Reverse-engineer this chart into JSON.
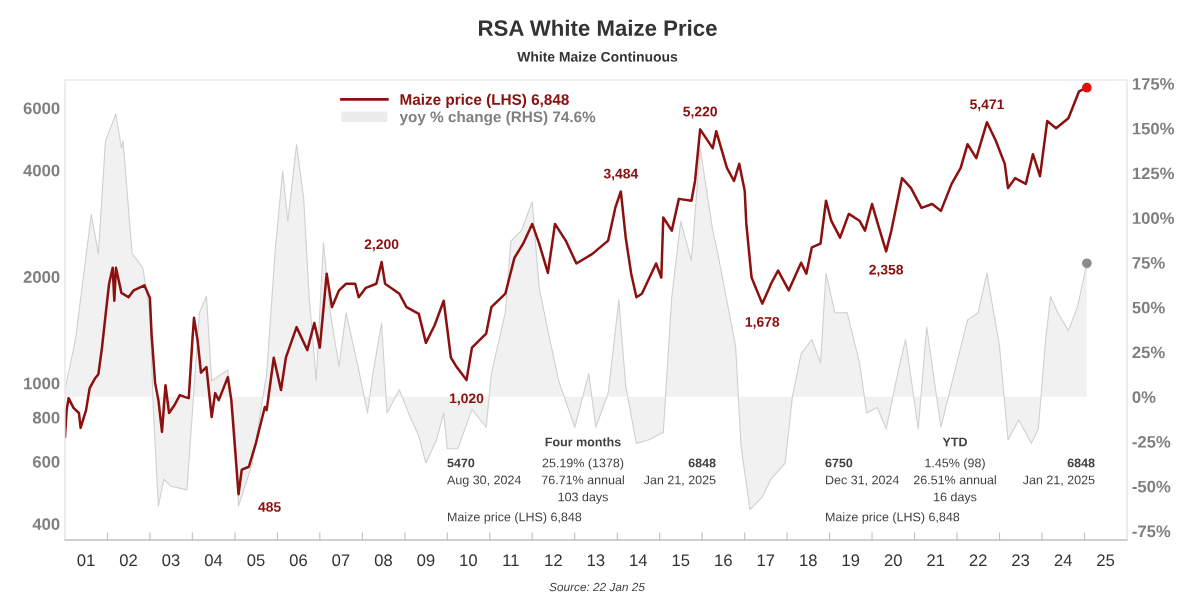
{
  "chart_data": {
    "type": "line",
    "title": "RSA White Maize Price",
    "subtitle": "White Maize Continuous",
    "xlim": [
      "2001-01-01",
      "2026-01-01"
    ],
    "ylim": [
      360,
      7200
    ],
    "log": "y",
    "y2lim": [
      -80,
      177
    ],
    "xticks": [
      {
        "value": "2001-07-01",
        "label": "01"
      },
      {
        "value": "2002-07-01",
        "label": "02"
      },
      {
        "value": "2003-07-01",
        "label": "03"
      },
      {
        "value": "2004-07-01",
        "label": "04"
      },
      {
        "value": "2005-07-01",
        "label": "05"
      },
      {
        "value": "2006-07-01",
        "label": "06"
      },
      {
        "value": "2007-07-01",
        "label": "07"
      },
      {
        "value": "2008-07-01",
        "label": "08"
      },
      {
        "value": "2009-07-01",
        "label": "09"
      },
      {
        "value": "2010-07-01",
        "label": "10"
      },
      {
        "value": "2011-07-01",
        "label": "11"
      },
      {
        "value": "2012-07-01",
        "label": "12"
      },
      {
        "value": "2013-07-01",
        "label": "13"
      },
      {
        "value": "2014-07-01",
        "label": "14"
      },
      {
        "value": "2015-07-01",
        "label": "15"
      },
      {
        "value": "2016-07-01",
        "label": "16"
      },
      {
        "value": "2017-07-01",
        "label": "17"
      },
      {
        "value": "2018-07-01",
        "label": "18"
      },
      {
        "value": "2019-07-01",
        "label": "19"
      },
      {
        "value": "2020-07-01",
        "label": "20"
      },
      {
        "value": "2021-07-01",
        "label": "21"
      },
      {
        "value": "2022-07-01",
        "label": "22"
      },
      {
        "value": "2023-07-01",
        "label": "23"
      },
      {
        "value": "2024-07-01",
        "label": "24"
      },
      {
        "value": "2025-07-01",
        "label": "25"
      },
      {
        "value": "2002-01-01",
        "label": null
      },
      {
        "value": "2003-01-01",
        "label": null
      },
      {
        "value": "2004-01-01",
        "label": null
      },
      {
        "value": "2005-01-01",
        "label": null
      },
      {
        "value": "2006-01-01",
        "label": null
      },
      {
        "value": "2007-01-01",
        "label": null
      },
      {
        "value": "2008-01-01",
        "label": null
      },
      {
        "value": "2009-01-01",
        "label": null
      },
      {
        "value": "2010-01-01",
        "label": null
      },
      {
        "value": "2011-01-01",
        "label": null
      },
      {
        "value": "2012-01-01",
        "label": null
      },
      {
        "value": "2013-01-01",
        "label": null
      },
      {
        "value": "2014-01-01",
        "label": null
      },
      {
        "value": "2015-01-01",
        "label": null
      },
      {
        "value": "2016-01-01",
        "label": null
      },
      {
        "value": "2017-01-01",
        "label": null
      },
      {
        "value": "2018-01-01",
        "label": null
      },
      {
        "value": "2019-01-01",
        "label": null
      },
      {
        "value": "2020-01-01",
        "label": null
      },
      {
        "value": "2021-01-01",
        "label": null
      },
      {
        "value": "2022-01-01",
        "label": null
      },
      {
        "value": "2023-01-01",
        "label": null
      },
      {
        "value": "2024-01-01",
        "label": null
      },
      {
        "value": "2025-01-01",
        "label": null
      }
    ],
    "yticks": [
      400,
      600,
      800,
      1000,
      2000,
      4000,
      6000
    ],
    "y2ticks": [
      {
        "value": 175,
        "label": "175%"
      },
      {
        "value": 150,
        "label": "150%"
      },
      {
        "value": 125,
        "label": "125%"
      },
      {
        "value": 100,
        "label": "100%"
      },
      {
        "value": 75,
        "label": "75%"
      },
      {
        "value": 50,
        "label": "50%"
      },
      {
        "value": 25,
        "label": "25%"
      },
      {
        "value": 0,
        "label": "0%"
      },
      {
        "value": -25,
        "label": "-25%"
      },
      {
        "value": -50,
        "label": "-50%"
      },
      {
        "value": -75,
        "label": "-75%"
      }
    ],
    "grid": false,
    "legend": "top",
    "series": [
      {
        "name": "yoy % change (RHS) 74.6%",
        "type": "area",
        "axis": "y2",
        "color": "#d0d0d0",
        "x": [
          "2001-01-01",
          "2001-04-01",
          "2001-08-15",
          "2001-10-15",
          "2001-12-15",
          "2002-03-15",
          "2002-05-01",
          "2002-05-15",
          "2002-08-01",
          "2002-11-01",
          "2003-01-01",
          "2003-02-01",
          "2003-03-15",
          "2003-05-01",
          "2003-07-01",
          "2003-11-15",
          "2004-01-01",
          "2004-03-01",
          "2004-05-01",
          "2004-06-15",
          "2004-11-01",
          "2005-01-01",
          "2005-02-01",
          "2005-06-01",
          "2005-10-01",
          "2005-12-15",
          "2006-02-15",
          "2006-04-01",
          "2006-06-15",
          "2006-08-15",
          "2006-10-01",
          "2006-12-01",
          "2007-02-01",
          "2007-04-01",
          "2007-06-15",
          "2007-08-15",
          "2007-12-01",
          "2008-02-15",
          "2008-04-01",
          "2008-06-15",
          "2008-08-01",
          "2008-11-15",
          "2009-02-01",
          "2009-05-01",
          "2009-07-01",
          "2009-10-01",
          "2009-12-01",
          "2010-01-01",
          "2010-04-01",
          "2010-08-01",
          "2010-12-01",
          "2011-01-15",
          "2011-05-15",
          "2011-07-01",
          "2011-10-01",
          "2012-01-01",
          "2012-03-01",
          "2012-05-15",
          "2012-08-15",
          "2013-01-01",
          "2013-05-01",
          "2013-07-01",
          "2013-10-15",
          "2014-01-15",
          "2014-03-15",
          "2014-06-15",
          "2014-10-01",
          "2015-02-01",
          "2015-04-15",
          "2015-07-01",
          "2015-10-01",
          "2015-12-15",
          "2016-04-01",
          "2016-05-15",
          "2016-10-15",
          "2016-12-01",
          "2017-02-15",
          "2017-06-01",
          "2017-08-15",
          "2017-12-15",
          "2018-02-15",
          "2018-05-01",
          "2018-08-01",
          "2018-10-15",
          "2018-12-01",
          "2019-02-15",
          "2019-06-01",
          "2019-09-15",
          "2019-11-15",
          "2020-02-15",
          "2020-05-01",
          "2020-08-15",
          "2020-10-15",
          "2021-02-01",
          "2021-04-15",
          "2021-08-15",
          "2021-12-15",
          "2022-04-01",
          "2022-07-01",
          "2022-09-15",
          "2023-01-01",
          "2023-03-15",
          "2023-06-15",
          "2023-10-01",
          "2023-12-01",
          "2024-02-01",
          "2024-03-15",
          "2024-05-15",
          "2024-08-15",
          "2024-11-01",
          "2025-01-21"
        ],
        "values": [
          4,
          32,
          102,
          80,
          143,
          158,
          139,
          143,
          80,
          72,
          47,
          -9,
          -61,
          -46,
          -50,
          -52,
          -9,
          47,
          56,
          9,
          15,
          -18,
          -61,
          -37,
          13,
          83,
          126,
          98,
          141,
          111,
          56,
          9,
          86,
          47,
          17,
          47,
          15,
          -9,
          13,
          41,
          -9,
          4,
          -9,
          -22,
          -37,
          -24,
          -9,
          -29,
          -29,
          -7,
          -17,
          13,
          47,
          87,
          93,
          109,
          61,
          37,
          9,
          -17,
          13,
          -17,
          2,
          54,
          6,
          -26,
          -24,
          -20,
          56,
          98,
          76,
          139,
          93,
          80,
          28,
          -28,
          -63,
          -56,
          -46,
          -37,
          0,
          24,
          32,
          19,
          69,
          47,
          47,
          19,
          -9,
          -6,
          -18,
          15,
          32,
          -18,
          39,
          -17,
          15,
          43,
          47,
          69,
          28,
          -24,
          -13,
          -26,
          -18,
          32,
          56,
          47,
          37,
          50,
          74.6
        ]
      },
      {
        "name": "Maize price (LHS) 6,848",
        "color": "#8c1010",
        "x": [
          "2001-01-01",
          "2001-01-15",
          "2001-02-01",
          "2001-03-15",
          "2001-05-01",
          "2001-05-15",
          "2001-07-01",
          "2001-08-01",
          "2001-09-15",
          "2001-10-15",
          "2001-11-15",
          "2001-12-15",
          "2002-01-15",
          "2002-02-15",
          "2002-03-01",
          "2002-03-15",
          "2002-05-01",
          "2002-07-01",
          "2002-08-15",
          "2002-11-15",
          "2003-01-01",
          "2003-01-15",
          "2003-02-15",
          "2003-03-15",
          "2003-04-15",
          "2003-05-15",
          "2003-06-15",
          "2003-08-01",
          "2003-09-15",
          "2003-11-01",
          "2003-12-01",
          "2004-01-01",
          "2004-01-15",
          "2004-02-15",
          "2004-03-15",
          "2004-05-01",
          "2004-06-15",
          "2004-07-15",
          "2004-08-15",
          "2004-11-01",
          "2004-12-01",
          "2005-01-01",
          "2005-02-01",
          "2005-03-01",
          "2005-05-01",
          "2005-07-01",
          "2005-09-15",
          "2005-10-01",
          "2005-12-01",
          "2006-02-01",
          "2006-03-15",
          "2006-06-15",
          "2006-09-15",
          "2006-11-15",
          "2007-01-01",
          "2007-03-01",
          "2007-04-15",
          "2007-06-15",
          "2007-08-15",
          "2007-11-01",
          "2007-12-01",
          "2008-02-01",
          "2008-05-01",
          "2008-06-15",
          "2008-07-15",
          "2008-11-15",
          "2009-01-15",
          "2009-05-01",
          "2009-07-01",
          "2009-09-15",
          "2009-12-01",
          "2010-02-01",
          "2010-03-15",
          "2010-06-15",
          "2010-08-01",
          "2010-12-01",
          "2011-01-15",
          "2011-05-15",
          "2011-08-01",
          "2011-10-15",
          "2012-01-01",
          "2012-03-01",
          "2012-05-15",
          "2012-07-15",
          "2012-10-15",
          "2013-01-15",
          "2013-06-01",
          "2013-10-15",
          "2013-12-15",
          "2014-02-01",
          "2014-03-15",
          "2014-05-01",
          "2014-06-15",
          "2014-08-01",
          "2014-12-01",
          "2015-01-15",
          "2015-02-01",
          "2015-04-15",
          "2015-06-15",
          "2015-10-01",
          "2015-11-01",
          "2015-12-15",
          "2016-04-01",
          "2016-05-01",
          "2016-08-01",
          "2016-10-01",
          "2016-11-15",
          "2017-01-01",
          "2017-01-15",
          "2017-03-01",
          "2017-06-01",
          "2017-08-01",
          "2017-08-15",
          "2017-10-15",
          "2018-01-15",
          "2018-05-01",
          "2018-06-15",
          "2018-08-01",
          "2018-10-15",
          "2018-12-01",
          "2019-01-15",
          "2019-04-01",
          "2019-06-15",
          "2019-09-15",
          "2019-11-01",
          "2020-01-01",
          "2020-03-01",
          "2020-05-01",
          "2020-06-15",
          "2020-09-15",
          "2020-12-01",
          "2021-03-01",
          "2021-06-01",
          "2021-08-15",
          "2021-11-15",
          "2022-02-01",
          "2022-04-01",
          "2022-06-15",
          "2022-09-15",
          "2022-12-01",
          "2023-02-15",
          "2023-03-15",
          "2023-05-15",
          "2023-08-15",
          "2023-10-15",
          "2023-12-15",
          "2024-02-15",
          "2024-05-01",
          "2024-08-15",
          "2024-11-15",
          "2025-01-21"
        ],
        "values": [
          705,
          839,
          907,
          851,
          823,
          747,
          839,
          968,
          1030,
          1060,
          1260,
          1550,
          1910,
          2120,
          1710,
          2120,
          1800,
          1750,
          1830,
          1890,
          1740,
          1380,
          1000,
          895,
          728,
          987,
          823,
          867,
          925,
          913,
          907,
          1320,
          1530,
          1320,
          1070,
          1110,
          802,
          937,
          895,
          1040,
          895,
          660,
          485,
          569,
          580,
          678,
          856,
          839,
          1180,
          956,
          1180,
          1440,
          1240,
          1480,
          1260,
          2040,
          1640,
          1830,
          1910,
          1910,
          1750,
          1860,
          1910,
          2200,
          1910,
          1790,
          1640,
          1570,
          1300,
          1460,
          1710,
          1180,
          1120,
          1020,
          1260,
          1380,
          1640,
          1790,
          2260,
          2480,
          2820,
          2480,
          2050,
          2820,
          2530,
          2180,
          2320,
          2530,
          3130,
          3484,
          2580,
          2040,
          1750,
          1790,
          2180,
          1990,
          2940,
          2700,
          3320,
          3280,
          3730,
          5220,
          4620,
          5160,
          4060,
          3730,
          4170,
          3500,
          2820,
          1990,
          1678,
          1860,
          1910,
          2080,
          1830,
          2190,
          2040,
          2420,
          2480,
          3280,
          2880,
          2580,
          3010,
          2880,
          2700,
          3210,
          2750,
          2358,
          2700,
          3800,
          3560,
          3130,
          3210,
          3070,
          3660,
          4060,
          4740,
          4330,
          5471,
          4840,
          4170,
          3560,
          3800,
          3660,
          4440,
          3850,
          5510,
          5260,
          5610,
          6690,
          6848
        ]
      },
      {
        "type": "scatter",
        "axis": "y2",
        "color": "#8c8c8c",
        "marker": "circle",
        "x": [
          "2025-01-21"
        ],
        "values": [
          74.6
        ]
      },
      {
        "type": "scatter",
        "color": "#e01010",
        "marker": "circle",
        "x": [
          "2025-01-21"
        ],
        "values": [
          6848
        ]
      }
    ],
    "annotations": [
      "Four months",
      "5470",
      "Aug 30, 2024",
      "25.19% (1378)",
      "76.71% annual",
      "103 days",
      "6848",
      "Jan 21, 2025",
      "Maize price (LHS) 6,848",
      "YTD",
      "6750",
      "Dec 31, 2024",
      "1.45% (98)",
      "26.51% annual",
      "16 days",
      "6848",
      "Jan 21, 2025",
      "Maize price (LHS) 6,848",
      "Source: 22 Jan 25",
      {
        "text": "485",
        "x": "2005-02-01",
        "y": 485
      },
      {
        "text": "2,200",
        "x": "2008-06-15",
        "y": 2200
      },
      {
        "text": "1,020",
        "x": "2010-06-15",
        "y": 1020
      },
      {
        "text": "3,484",
        "x": "2014-02-01",
        "y": 3484
      },
      {
        "text": "5,220",
        "x": "2015-12-15",
        "y": 5220
      },
      {
        "text": "1,678",
        "x": "2017-06-01",
        "y": 1678
      },
      {
        "text": "2,358",
        "x": "2020-05-01",
        "y": 2358
      },
      {
        "text": "5,471",
        "x": "2022-09-15",
        "y": 5471
      }
    ]
  }
}
